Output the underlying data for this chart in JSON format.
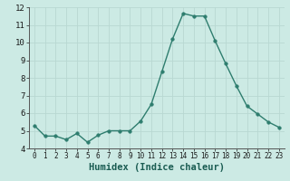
{
  "x": [
    0,
    1,
    2,
    3,
    4,
    5,
    6,
    7,
    8,
    9,
    10,
    11,
    12,
    13,
    14,
    15,
    16,
    17,
    18,
    19,
    20,
    21,
    22,
    23
  ],
  "y": [
    5.3,
    4.7,
    4.7,
    4.5,
    4.85,
    4.35,
    4.75,
    5.0,
    5.0,
    5.0,
    5.55,
    6.5,
    8.35,
    10.2,
    11.65,
    11.5,
    11.5,
    10.1,
    8.8,
    7.55,
    6.4,
    5.95,
    5.5,
    5.2
  ],
  "line_color": "#2e7d6e",
  "marker": "o",
  "marker_size": 2.5,
  "bg_color": "#cceae4",
  "grid_color": "#b8d8d2",
  "xlabel": "Humidex (Indice chaleur)",
  "ylim": [
    4,
    12
  ],
  "xlim": [
    -0.5,
    23.5
  ],
  "yticks": [
    4,
    5,
    6,
    7,
    8,
    9,
    10,
    11,
    12
  ],
  "xticks": [
    0,
    1,
    2,
    3,
    4,
    5,
    6,
    7,
    8,
    9,
    10,
    11,
    12,
    13,
    14,
    15,
    16,
    17,
    18,
    19,
    20,
    21,
    22,
    23
  ],
  "xlabel_fontsize": 7.5,
  "tick_fontsize": 6.5,
  "line_width": 1.0,
  "spine_color": "#555555"
}
